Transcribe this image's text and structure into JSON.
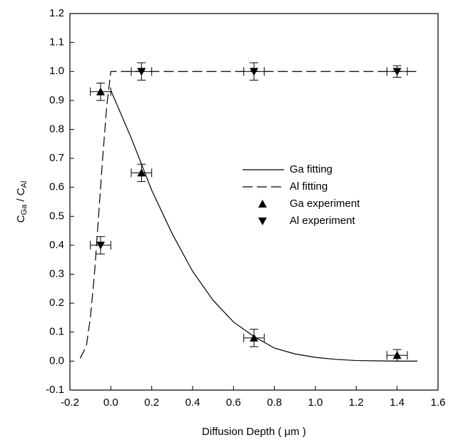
{
  "chart_data": {
    "type": "line",
    "xlabel": "Diffusion Depth ( μm )",
    "ylabel": {
      "c1": "C",
      "s1": "Ga",
      "sep": " / ",
      "c2": "C",
      "s2": "Al"
    },
    "xlim": [
      -0.2,
      1.6
    ],
    "ylim": [
      -0.1,
      1.2
    ],
    "xticks": [
      -0.2,
      {
        "value": 0,
        "label": "0.0"
      },
      0.2,
      0.4,
      0.6,
      0.8,
      {
        "value": 1,
        "label": "1.0"
      },
      1.2,
      1.4,
      1.6
    ],
    "yticks": [
      -0.1,
      {
        "value": 0,
        "label": "0.0"
      },
      0.1,
      0.2,
      0.3,
      0.4,
      0.5,
      0.6,
      0.7,
      0.8,
      0.9,
      {
        "value": 1,
        "label": "1.0"
      },
      1.1,
      1.2
    ],
    "series": [
      {
        "name": "Ga fitting",
        "color": "#000000",
        "style": "solid",
        "x": [
          0,
          0.1,
          0.2,
          0.3,
          0.4,
          0.5,
          0.6,
          0.7,
          0.8,
          0.9,
          1.0,
          1.1,
          1.2,
          1.3,
          1.4,
          1.5
        ],
        "values": [
          0.935,
          0.77,
          0.59,
          0.44,
          0.31,
          0.21,
          0.135,
          0.085,
          0.045,
          0.025,
          0.013,
          0.006,
          0.002,
          0.001,
          0,
          0
        ]
      },
      {
        "name": "Al fitting",
        "color": "#000000",
        "style": "dashed",
        "x": [
          -0.15,
          -0.12,
          -0.1,
          -0.08,
          -0.06,
          -0.04,
          -0.02,
          0,
          1.5
        ],
        "values": [
          0.01,
          0.05,
          0.15,
          0.3,
          0.5,
          0.7,
          0.88,
          1.0,
          1.0
        ]
      },
      {
        "name": "Ga experiment",
        "color": "#000000",
        "marker": "up",
        "x": [
          -0.05,
          0.15,
          0.7,
          1.4
        ],
        "values": [
          0.93,
          0.65,
          0.08,
          0.02
        ],
        "xerr": [
          0.05,
          0.05,
          0.05,
          0.05
        ],
        "yerr": [
          0.03,
          0.03,
          0.03,
          0.02
        ]
      },
      {
        "name": "Al experiment",
        "color": "#000000",
        "marker": "down",
        "x": [
          -0.05,
          0.15,
          0.7,
          1.4
        ],
        "values": [
          0.4,
          1.0,
          1.0,
          1.0
        ],
        "xerr": [
          0.05,
          0.05,
          0.05,
          0.05
        ],
        "yerr": [
          0.03,
          0.03,
          0.03,
          0.02
        ]
      }
    ]
  }
}
